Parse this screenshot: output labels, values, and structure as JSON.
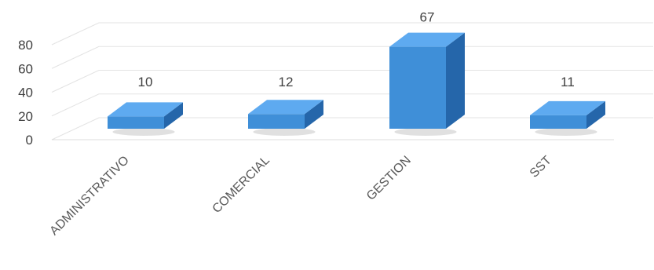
{
  "chart_data": {
    "type": "bar",
    "categories": [
      "ADMINISTRATIVO",
      "COMERCIAL",
      "GESTION",
      "SST"
    ],
    "values": [
      10,
      12,
      67,
      11
    ],
    "data_labels": [
      "10",
      "12",
      "67",
      "11"
    ],
    "y_ticks": [
      "0",
      "20",
      "40",
      "60",
      "80"
    ],
    "ylim": [
      0,
      80
    ],
    "grid": true,
    "style": "3d-column",
    "colors": {
      "bar_front": "#3f8fd8",
      "bar_top": "#5eaaf0",
      "bar_side": "#2566aa",
      "grid": "#e3e3e3"
    }
  }
}
